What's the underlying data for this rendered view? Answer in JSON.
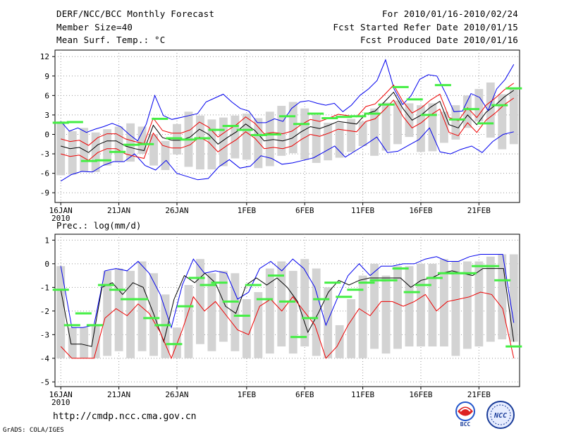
{
  "header": {
    "title": "DERF/NCC/BCC Monthly Forecast",
    "member": "Member Size=40",
    "variable": "Mean Surf. Temp.: °C",
    "period": "For 2010/01/16-2010/02/24",
    "fcst_start": "Fcst Started Refer Date 2010/01/15",
    "fcst_produced": "Fcst Produced Date 2010/01/16"
  },
  "footer": {
    "url": "http://cmdp.ncc.cma.gov.cn",
    "grads": "GrADS: COLA/IGES"
  },
  "logos": {
    "bcc": "BCC",
    "ncc": "NCC"
  },
  "colors": {
    "max": "#0000ee",
    "min": "#ee0000",
    "mean": "#000000",
    "observed": "#44ee44",
    "spread": "#d3d3d3",
    "grid": "#999999"
  },
  "chart_data": [
    {
      "type": "line",
      "title": "Mean Surf. Temp.: °C",
      "ylim": [
        -10.5,
        13
      ],
      "yticks": [
        12,
        9,
        6,
        3,
        0,
        -3,
        -6,
        -9
      ],
      "xticks": [
        {
          "day": 0,
          "label": "16JAN",
          "sub": "2010"
        },
        {
          "day": 5,
          "label": "21JAN"
        },
        {
          "day": 10,
          "label": "26JAN"
        },
        {
          "day": 16,
          "label": "1FEB"
        },
        {
          "day": 21,
          "label": "6FEB"
        },
        {
          "day": 26,
          "label": "11FEB"
        },
        {
          "day": 31,
          "label": "16FEB"
        },
        {
          "day": 36,
          "label": "21FEB"
        }
      ],
      "xgrid_days": [
        0,
        5,
        10,
        16,
        21,
        26,
        31,
        36
      ],
      "series": [
        {
          "name": "max",
          "values": [
            -7.2,
            -6.2,
            -5.7,
            -5.8,
            -4.8,
            -4.2,
            -4.2,
            -3.0,
            -4.8,
            -5.5,
            -4.0,
            -6.0,
            -6.5,
            -7.0,
            -6.8,
            -5.0,
            -3.9,
            -5.2,
            -4.9,
            -3.3,
            -3.7,
            -4.6,
            -4.4,
            -4.0,
            -3.6,
            -2.7,
            -1.8,
            -3.5,
            -2.5,
            -1.5,
            -0.4,
            -2.8,
            -2.6,
            -1.7,
            -0.8,
            1.0,
            -2.7,
            -3.0,
            -2.3,
            -1.8,
            -2.8,
            -1.1,
            0.0,
            0.4
          ]
        },
        {
          "name": "mean",
          "values": [
            -1.8,
            -2.2,
            -2.0,
            -2.8,
            -1.6,
            -1.0,
            -1.0,
            -1.8,
            -2.2,
            -2.5,
            1.4,
            -0.5,
            -0.9,
            -0.9,
            -0.4,
            0.8,
            0.0,
            -1.5,
            -0.5,
            0.4,
            1.6,
            0.6,
            -1.0,
            -0.8,
            -1.0,
            -0.6,
            0.4,
            1.2,
            0.9,
            1.4,
            2.0,
            1.8,
            1.6,
            3.2,
            3.6,
            5.0,
            6.5,
            4.0,
            2.2,
            3.0,
            4.2,
            5.1,
            1.5,
            1.0,
            3.0,
            1.5,
            3.4,
            4.5,
            5.8,
            6.8
          ]
        },
        {
          "name": "ens_max",
          "values": [
            2.0,
            0.5,
            1.0,
            0.3,
            0.8,
            1.2,
            1.7,
            1.2,
            0.0,
            -1.0,
            1.6,
            6.0,
            2.9,
            2.3,
            2.6,
            2.9,
            3.2,
            5.0,
            5.6,
            6.2,
            5.0,
            4.0,
            3.6,
            1.8,
            1.8,
            2.4,
            2.0,
            4.0,
            5.0,
            5.2,
            4.8,
            4.5,
            4.8,
            3.5,
            4.5,
            6.0,
            7.0,
            8.3,
            11.5,
            7.0,
            4.6,
            6.0,
            8.5,
            9.2,
            9.0,
            6.4,
            3.5,
            3.6,
            6.3,
            5.7,
            3.7,
            7.0,
            8.5,
            10.8
          ]
        }
      ],
      "observed": [
        1.8,
        1.9,
        -4.1,
        -4.0,
        -2.7,
        -1.6,
        -1.5,
        2.4,
        -0.6,
        -0.8,
        -0.6,
        0.7,
        1.3,
        0.7,
        -0.1,
        0.0,
        2.8,
        1.6,
        3.2,
        2.5,
        2.7,
        2.8,
        3.2,
        4.6,
        7.3,
        5.4,
        3.0,
        7.6,
        2.3,
        3.9,
        1.7,
        4.5,
        7.1
      ]
    },
    {
      "type": "line",
      "title": "Prec.: log(mm/d)",
      "ylim": [
        -5.2,
        1.25
      ],
      "yticks": [
        1,
        0,
        -1,
        -2,
        -3,
        -4,
        -5
      ],
      "xticks": [
        {
          "day": 0,
          "label": "16JAN",
          "sub": "2010"
        },
        {
          "day": 5,
          "label": "21JAN"
        },
        {
          "day": 10,
          "label": "26JAN"
        },
        {
          "day": 16,
          "label": "1FEB"
        },
        {
          "day": 21,
          "label": "6FEB"
        },
        {
          "day": 26,
          "label": "11FEB"
        },
        {
          "day": 31,
          "label": "16FEB"
        },
        {
          "day": 36,
          "label": "21FEB"
        }
      ],
      "xgrid_days": [
        0,
        5,
        10,
        16,
        21,
        26,
        31,
        36
      ],
      "series": [
        {
          "name": "max",
          "values": [
            -0.1,
            -2.7,
            -2.7,
            -2.6,
            -0.3,
            -0.2,
            -0.3,
            0.1,
            -0.4,
            -1.3,
            -2.7,
            -0.9,
            0.2,
            -0.4,
            -0.3,
            -0.4,
            -1.5,
            -1.2,
            -0.2,
            0.1,
            -0.3,
            0.2,
            -0.2,
            -1.0,
            -2.6,
            -1.5,
            -0.5,
            0.0,
            -0.5,
            -0.1,
            -0.1,
            0.0,
            0.0,
            0.2,
            0.3,
            0.1,
            0.1,
            0.3,
            0.4,
            0.4,
            0.4,
            -2.5
          ]
        },
        {
          "name": "mean",
          "values": [
            -1.1,
            -3.4,
            -3.4,
            -3.5,
            -1.0,
            -0.8,
            -1.3,
            -0.8,
            -1.0,
            -2.1,
            -3.3,
            -1.5,
            -0.5,
            -0.8,
            -0.4,
            -0.8,
            -1.8,
            -2.1,
            -0.9,
            -0.6,
            -0.9,
            -0.6,
            -1.0,
            -1.6,
            -2.9,
            -2.1,
            -1.2,
            -0.7,
            -0.9,
            -0.7,
            -0.6,
            -0.6,
            -0.6,
            -0.6,
            -1.0,
            -0.7,
            -0.6,
            -0.4,
            -0.3,
            -0.4,
            -0.5,
            -0.2,
            -0.2,
            -0.2,
            -3.3
          ]
        },
        {
          "name": "min",
          "values": [
            -3.5,
            -4.0,
            -4.0,
            -4.0,
            -2.3,
            -1.9,
            -2.2,
            -1.7,
            -2.1,
            -2.9,
            -4.0,
            -2.8,
            -1.4,
            -2.0,
            -1.6,
            -2.2,
            -2.8,
            -3.0,
            -1.8,
            -1.5,
            -2.0,
            -1.4,
            -2.0,
            -2.6,
            -4.0,
            -3.5,
            -2.6,
            -1.9,
            -2.2,
            -1.6,
            -1.6,
            -1.8,
            -1.6,
            -1.3,
            -2.0,
            -1.6,
            -1.5,
            -1.4,
            -1.2,
            -1.3,
            -1.9,
            -4.0
          ]
        }
      ],
      "observed": [
        -1.1,
        -2.6,
        -2.1,
        -2.6,
        -0.9,
        -1.1,
        -1.5,
        -1.5,
        -2.3,
        -2.6,
        -3.4,
        -1.8,
        -0.6,
        -0.9,
        -0.8,
        -1.6,
        -2.2,
        -0.9,
        -1.5,
        -0.5,
        -1.6,
        -3.1,
        -2.3,
        -1.5,
        -0.8,
        -1.4,
        -1.1,
        -0.8,
        -0.7,
        -0.7,
        -0.2,
        -1.2,
        -0.9,
        -0.6,
        -0.4,
        -0.4,
        -0.4,
        -0.1,
        -0.1,
        -0.7,
        -3.5
      ]
    }
  ]
}
